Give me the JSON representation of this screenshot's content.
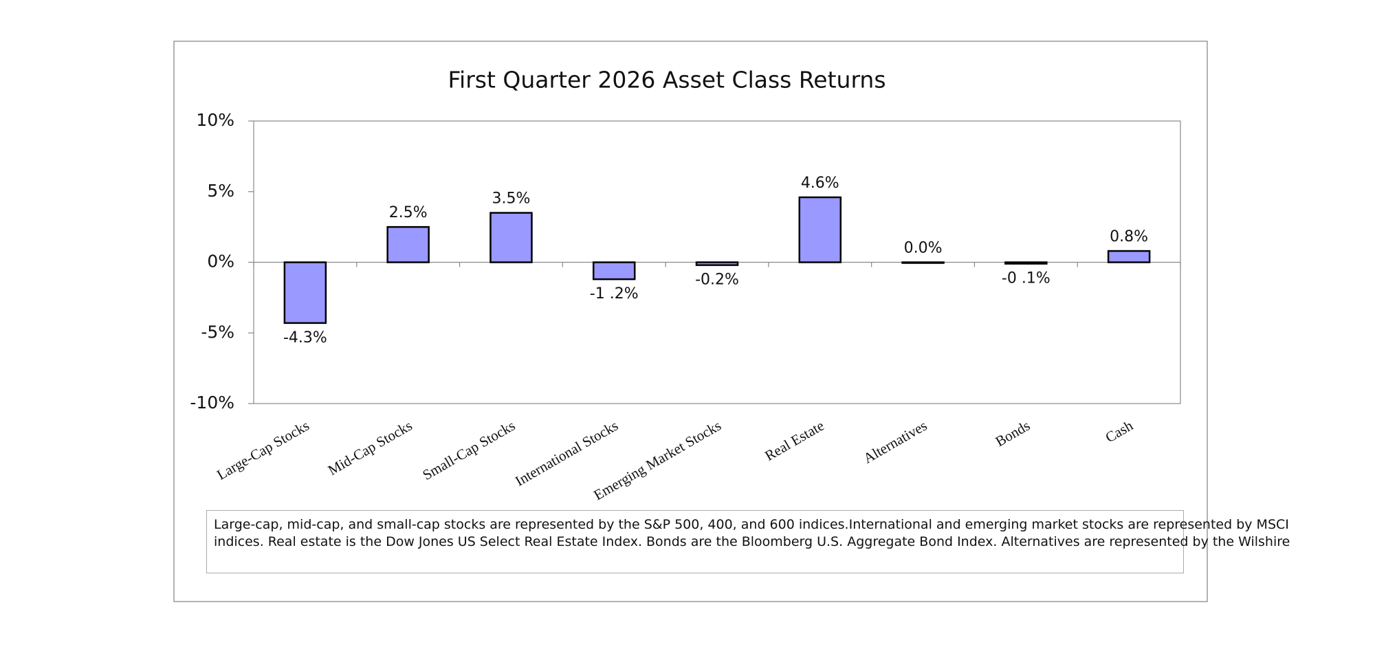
{
  "chart_data": {
    "type": "bar",
    "title": "First Quarter 2026 Asset Class Returns",
    "categories": [
      "Large-Cap Stocks",
      "Mid-Cap Stocks",
      "Small-Cap Stocks",
      "International Stocks",
      "Emerging Market Stocks",
      "Real Estate",
      "Alternatives",
      "Bonds",
      "Cash"
    ],
    "values": [
      -4.3,
      2.5,
      3.5,
      -1.2,
      -0.2,
      4.6,
      0.0,
      -0.1,
      0.8
    ],
    "value_labels": [
      "-4.3%",
      "2.5%",
      "3.5%",
      "-1 .2%",
      "-0.2%",
      "4.6%",
      "0.0%",
      "-0 .1%",
      "0.8%"
    ],
    "color": "#9999ff",
    "ylim": [
      -10,
      10
    ],
    "yticks": [
      {
        "value": -10,
        "label": "-10%"
      },
      {
        "value": -5,
        "label": "-5%"
      },
      {
        "value": 0,
        "label": "0%"
      },
      {
        "value": 5,
        "label": "5%"
      },
      {
        "value": 10,
        "label": "10%"
      }
    ],
    "grid": false,
    "note_lines": [
      "Large-cap, mid-cap, and small-cap stocks are represented by the S&P 500, 400, and 600 indices.International and emerging market stocks are represented by MSCI",
      "indices. Real estate is the Dow Jones US Select Real Estate Index. Bonds are the Bloomberg U.S. Aggregate Bond Index. Alternatives are represented by the Wilshire"
    ]
  }
}
